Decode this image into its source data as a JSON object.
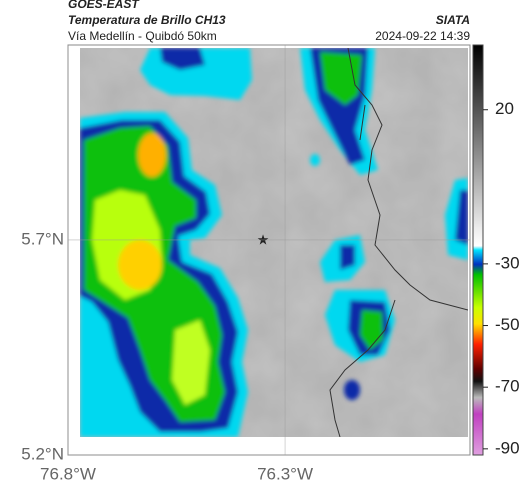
{
  "header": {
    "agency": "GOES-EAST",
    "title": "Temperatura de Brillo CH13",
    "subtitle": "Vía Medellín - Quibdó 50km",
    "source": "SIATA",
    "datetime": "2024-09-22 14:39"
  },
  "map": {
    "xlim": [
      -76.8,
      -75.874
    ],
    "ylim": [
      5.2,
      6.153
    ],
    "xticks": [
      {
        "value": -76.8,
        "label": "76.8°W"
      },
      {
        "value": -76.3,
        "label": "76.3°W"
      }
    ],
    "yticks": [
      {
        "value": 5.7,
        "label": "5.7°N"
      },
      {
        "value": 5.2,
        "label": "5.2°N"
      }
    ]
  },
  "colorbar": {
    "lim": [
      -92,
      41
    ],
    "ticks": [
      20,
      -30,
      -50,
      -70,
      -90
    ]
  }
}
